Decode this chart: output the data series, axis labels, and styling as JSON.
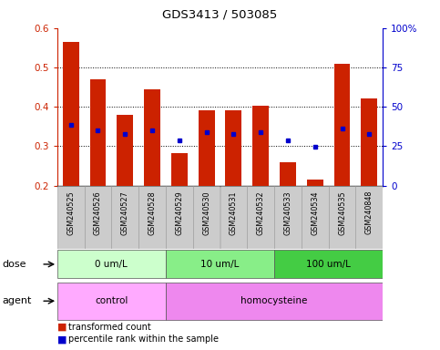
{
  "title": "GDS3413 / 503085",
  "samples": [
    "GSM240525",
    "GSM240526",
    "GSM240527",
    "GSM240528",
    "GSM240529",
    "GSM240530",
    "GSM240531",
    "GSM240532",
    "GSM240533",
    "GSM240534",
    "GSM240535",
    "GSM240848"
  ],
  "transformed_count": [
    0.565,
    0.47,
    0.38,
    0.445,
    0.283,
    0.39,
    0.39,
    0.402,
    0.258,
    0.215,
    0.51,
    0.42
  ],
  "percentile_rank_left": [
    0.355,
    0.34,
    0.33,
    0.34,
    0.315,
    0.335,
    0.33,
    0.335,
    0.315,
    0.298,
    0.345,
    0.33
  ],
  "ymin": 0.2,
  "ymax": 0.6,
  "bar_color": "#cc2200",
  "dot_color": "#0000cc",
  "yticks_left": [
    0.2,
    0.3,
    0.4,
    0.5,
    0.6
  ],
  "ytick_labels_left": [
    "0.2",
    "0.3",
    "0.4",
    "0.5",
    "0.6"
  ],
  "yticks_right_pct": [
    0,
    25,
    50,
    75,
    100
  ],
  "ytick_labels_right": [
    "0",
    "25",
    "50",
    "75",
    "100%"
  ],
  "grid_values": [
    0.3,
    0.4,
    0.5
  ],
  "dose_groups": [
    {
      "label": "0 um/L",
      "start": 0,
      "end": 4,
      "color": "#ccffcc"
    },
    {
      "label": "10 um/L",
      "start": 4,
      "end": 8,
      "color": "#88ee88"
    },
    {
      "label": "100 um/L",
      "start": 8,
      "end": 12,
      "color": "#44cc44"
    }
  ],
  "agent_groups": [
    {
      "label": "control",
      "start": 0,
      "end": 4,
      "color": "#ffaaff"
    },
    {
      "label": "homocysteine",
      "start": 4,
      "end": 12,
      "color": "#ee88ee"
    }
  ],
  "label_dose": "dose",
  "label_agent": "agent",
  "legend_red": "transformed count",
  "legend_blue": "percentile rank within the sample",
  "sample_label_bgcolor": "#cccccc",
  "plot_bgcolor": "#ffffff"
}
